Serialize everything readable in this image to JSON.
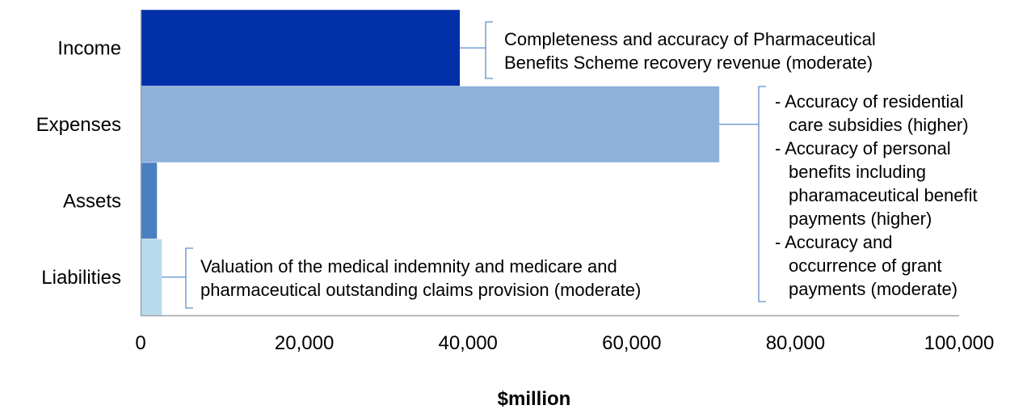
{
  "chart_data": {
    "type": "bar",
    "orientation": "horizontal",
    "categories": [
      "Income",
      "Expenses",
      "Assets",
      "Liabilities"
    ],
    "values": [
      39000,
      70700,
      2000,
      2600
    ],
    "colors": [
      "#002fa7",
      "#8eb0d9",
      "#4a7fc2",
      "#b7dbed"
    ],
    "xlabel": "$million",
    "xlim": [
      0,
      100000
    ],
    "xticks": [
      "0",
      "20,000",
      "40,000",
      "60,000",
      "80,000",
      "100,000"
    ],
    "grid": false
  },
  "annotations": {
    "income": [
      "Completeness and accuracy of Pharmaceutical",
      "Benefits Scheme recovery revenue (moderate)"
    ],
    "expenses": [
      [
        "- Accuracy of residential",
        "care subsidies (higher)"
      ],
      [
        "- Accuracy of personal",
        "benefits including",
        "pharamaceutical benefit",
        "payments (higher)"
      ],
      [
        "- Accuracy and",
        "occurrence of grant",
        "payments (moderate)"
      ]
    ],
    "liabilities": [
      "Valuation of the medical indemnity and medicare and",
      "pharmaceutical outstanding claims provision (moderate)"
    ]
  },
  "colors": {
    "axis": "#9aa3ad",
    "bracket": "#5a8fc9"
  }
}
